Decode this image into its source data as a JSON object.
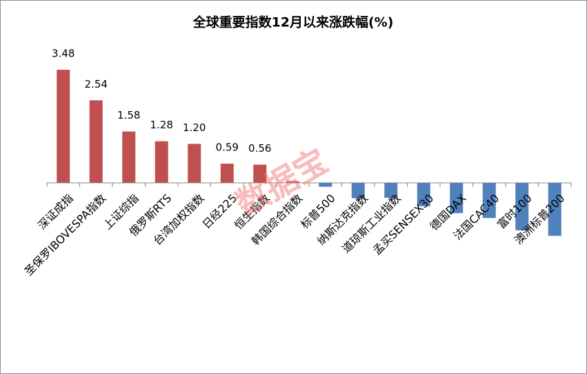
{
  "chart_data": {
    "type": "bar",
    "title": "全球重要指数12月以来涨跌幅(%)",
    "annotation": "数据宝",
    "categories": [
      "深证成指",
      "圣保罗IBOVESPA指数",
      "上证综指",
      "俄罗斯RTS",
      "台湾加权指数",
      "日经225",
      "恒生指数",
      "韩国综合指数",
      "标普500",
      "纳斯达克指数",
      "道琼斯工业指数",
      "孟买SENSEX30",
      "德国DAX",
      "法国CAC40",
      "富时100",
      "澳洲标普200"
    ],
    "values": [
      3.48,
      2.54,
      1.58,
      1.28,
      1.2,
      0.59,
      0.56,
      0.05,
      -0.12,
      -0.47,
      -0.46,
      -0.72,
      -0.93,
      -1.08,
      -1.46,
      -1.63
    ],
    "value_labels": [
      "3.48",
      "2.54",
      "1.58",
      "1.28",
      "1.20",
      "0.59",
      "0.56",
      null,
      null,
      null,
      null,
      null,
      null,
      null,
      null,
      null
    ],
    "color_positive": "#c0504d",
    "color_negative": "#4f81bd",
    "ylim": [
      -2,
      4
    ]
  }
}
